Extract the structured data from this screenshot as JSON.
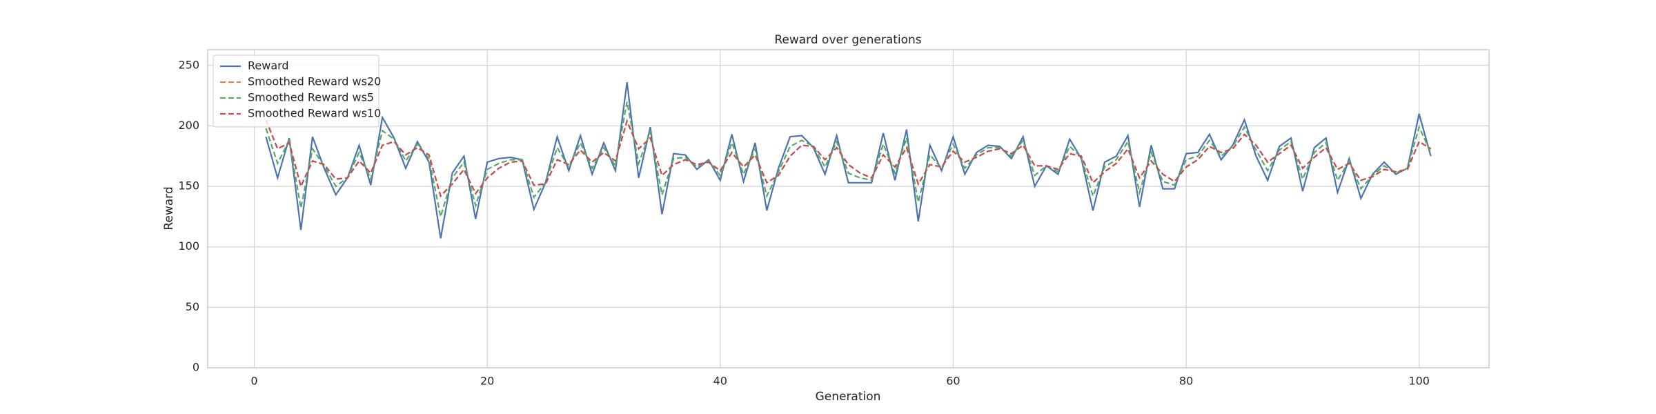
{
  "chart_data": {
    "type": "line",
    "title": "Reward over generations",
    "xlabel": "Generation",
    "ylabel": "Reward",
    "x": [
      1,
      2,
      3,
      4,
      5,
      6,
      7,
      8,
      9,
      10,
      11,
      12,
      13,
      14,
      15,
      16,
      17,
      18,
      19,
      20,
      21,
      22,
      23,
      24,
      25,
      26,
      27,
      28,
      29,
      30,
      31,
      32,
      33,
      34,
      35,
      36,
      37,
      38,
      39,
      40,
      41,
      42,
      43,
      44,
      45,
      46,
      47,
      48,
      49,
      50,
      51,
      52,
      53,
      54,
      55,
      56,
      57,
      58,
      59,
      60,
      61,
      62,
      63,
      64,
      65,
      66,
      67,
      68,
      69,
      70,
      71,
      72,
      73,
      74,
      75,
      76,
      77,
      78,
      79,
      80,
      81,
      82,
      83,
      84,
      85,
      86,
      87,
      88,
      89,
      90,
      91,
      92,
      93,
      94,
      95,
      96,
      97,
      98,
      99,
      100,
      101
    ],
    "series": [
      {
        "name": "Reward",
        "color": "#4c72b0",
        "linestyle": "solid",
        "values": [
          191,
          157,
          190,
          114,
          191,
          165,
          143,
          157,
          184,
          151,
          207,
          190,
          165,
          187,
          170,
          107,
          161,
          175,
          123,
          170,
          173,
          174,
          172,
          131,
          153,
          191,
          163,
          192,
          160,
          186,
          163,
          236,
          157,
          199,
          127,
          177,
          176,
          164,
          172,
          155,
          193,
          154,
          186,
          130,
          165,
          191,
          192,
          182,
          160,
          192,
          153,
          153,
          153,
          194,
          155,
          197,
          121,
          184,
          163,
          191,
          160,
          178,
          184,
          183,
          173,
          191,
          150,
          167,
          160,
          189,
          173,
          130,
          170,
          175,
          192,
          133,
          184,
          148,
          148,
          177,
          178,
          193,
          172,
          184,
          205,
          175,
          155,
          183,
          190,
          146,
          182,
          190,
          145,
          173,
          140,
          160,
          170,
          160,
          165,
          210,
          175
        ]
      },
      {
        "name": "Smoothed Reward ws20",
        "color": "#dd8452",
        "linestyle": "dashed",
        "values": [
          205,
          181,
          186,
          150,
          171,
          168,
          156,
          157,
          171,
          161,
          184,
          187,
          176,
          182,
          176,
          142,
          152,
          164,
          144,
          157,
          165,
          170,
          171,
          151,
          152,
          172,
          168,
          180,
          170,
          178,
          171,
          204,
          181,
          190,
          159,
          168,
          172,
          168,
          170,
          163,
          178,
          166,
          176,
          153,
          159,
          175,
          184,
          183,
          172,
          182,
          168,
          161,
          157,
          176,
          166,
          182,
          152,
          168,
          166,
          179,
          170,
          174,
          179,
          181,
          177,
          184,
          167,
          167,
          164,
          177,
          175,
          153,
          162,
          169,
          181,
          157,
          171,
          160,
          154,
          166,
          172,
          183,
          178,
          181,
          193,
          184,
          170,
          177,
          184,
          165,
          174,
          182,
          164,
          169,
          155,
          158,
          164,
          162,
          164,
          187,
          181
        ]
      },
      {
        "name": "Smoothed Reward ws5",
        "color": "#55a868",
        "linestyle": "dashed",
        "values": [
          198,
          169,
          188,
          132,
          181,
          167,
          150,
          157,
          178,
          156,
          196,
          189,
          171,
          185,
          173,
          125,
          157,
          170,
          134,
          164,
          169,
          172,
          172,
          141,
          153,
          182,
          166,
          186,
          165,
          182,
          167,
          220,
          169,
          195,
          143,
          173,
          174,
          166,
          171,
          159,
          186,
          160,
          181,
          142,
          162,
          183,
          188,
          183,
          166,
          187,
          161,
          157,
          155,
          185,
          161,
          190,
          137,
          176,
          165,
          185,
          165,
          176,
          182,
          182,
          175,
          188,
          159,
          167,
          162,
          183,
          174,
          142,
          166,
          172,
          187,
          145,
          178,
          154,
          151,
          172,
          175,
          188,
          175,
          183,
          199,
          180,
          163,
          180,
          187,
          156,
          178,
          186,
          155,
          171,
          148,
          159,
          167,
          161,
          165,
          199,
          178
        ]
      },
      {
        "name": "Smoothed Reward ws10",
        "color": "#c44e52",
        "linestyle": "dashed",
        "values": [
          205,
          181,
          186,
          150,
          171,
          168,
          156,
          157,
          171,
          161,
          184,
          187,
          176,
          182,
          176,
          142,
          152,
          164,
          144,
          157,
          165,
          170,
          171,
          151,
          152,
          172,
          168,
          180,
          170,
          178,
          171,
          204,
          181,
          190,
          159,
          168,
          172,
          168,
          170,
          163,
          178,
          166,
          176,
          153,
          159,
          175,
          184,
          183,
          172,
          182,
          168,
          161,
          157,
          176,
          166,
          182,
          152,
          168,
          166,
          179,
          170,
          174,
          179,
          181,
          177,
          184,
          167,
          167,
          164,
          177,
          175,
          153,
          162,
          169,
          181,
          157,
          171,
          160,
          154,
          166,
          172,
          183,
          178,
          181,
          193,
          184,
          170,
          177,
          184,
          165,
          174,
          182,
          164,
          169,
          155,
          158,
          164,
          162,
          164,
          187,
          181
        ]
      }
    ],
    "xlim": [
      -4,
      106
    ],
    "xticks": [
      0,
      20,
      40,
      60,
      80,
      100
    ],
    "ylim": [
      0,
      263
    ],
    "yticks": [
      0,
      50,
      100,
      150,
      200,
      250
    ],
    "grid": true,
    "legend": "upper left"
  }
}
